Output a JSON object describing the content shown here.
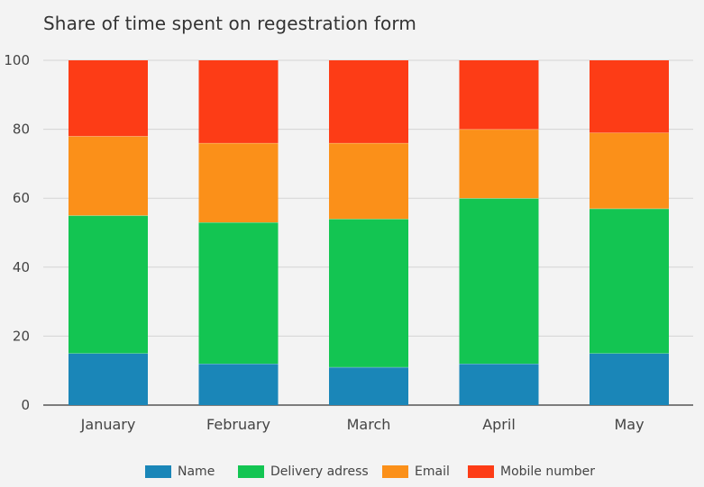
{
  "chart_data": {
    "type": "bar",
    "stacked": true,
    "title": "Share of time spent on regestration form",
    "xlabel": "",
    "ylabel": "",
    "ylim": [
      0,
      100
    ],
    "yticks": [
      "0",
      "20",
      "40",
      "60",
      "80",
      "100"
    ],
    "grid": true,
    "legend_position": "bottom",
    "categories": [
      "January",
      "February",
      "March",
      "April",
      "May"
    ],
    "series": [
      {
        "name": "Name",
        "color": "#1a86b8",
        "values": [
          15,
          12,
          11,
          12,
          15
        ]
      },
      {
        "name": "Delivery adress",
        "color": "#13c552",
        "values": [
          40,
          41,
          43,
          48,
          42
        ]
      },
      {
        "name": "Email",
        "color": "#fb9019",
        "values": [
          23,
          23,
          22,
          20,
          22
        ]
      },
      {
        "name": "Mobile number",
        "color": "#fd3c16",
        "values": [
          22,
          24,
          24,
          20,
          21
        ]
      }
    ]
  }
}
